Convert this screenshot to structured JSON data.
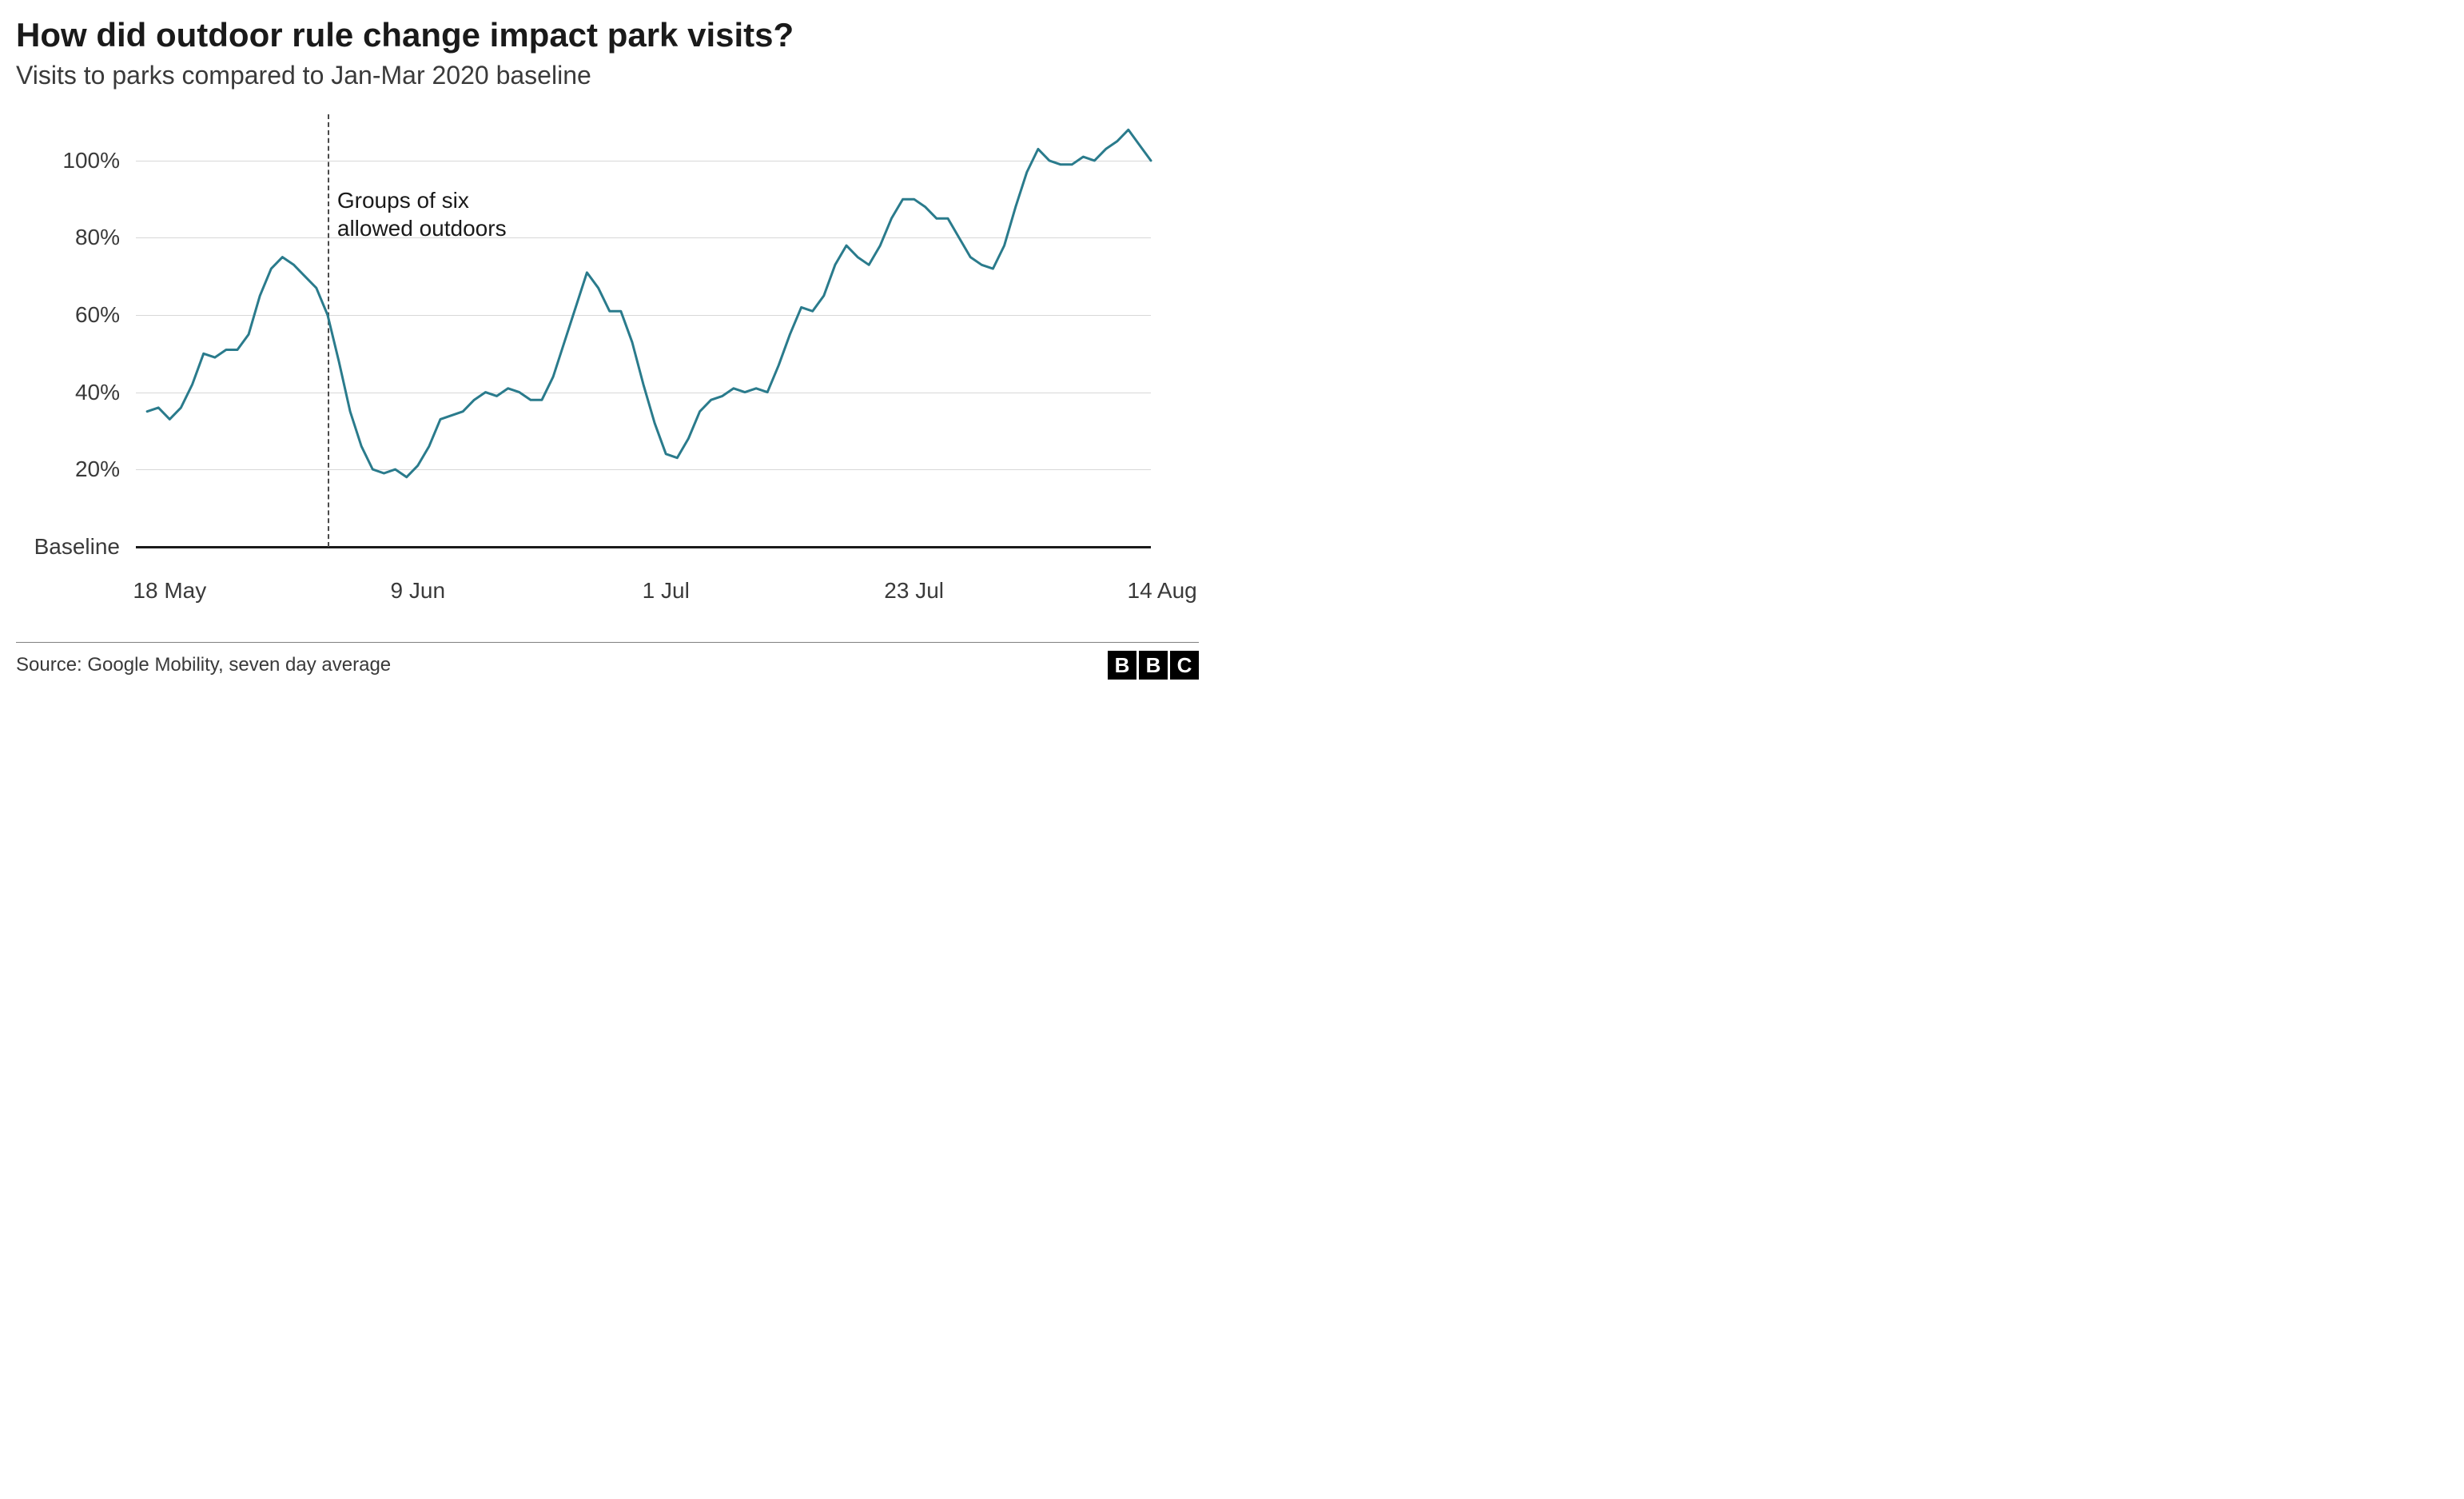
{
  "title": "How did outdoor rule change impact park visits?",
  "subtitle": "Visits to parks compared to Jan-Mar 2020 baseline",
  "source": "Source: Google Mobility, seven day average",
  "logo_letters": [
    "B",
    "B",
    "C"
  ],
  "chart": {
    "type": "line",
    "background_color": "#ffffff",
    "grid_color": "#d8d8d8",
    "baseline_color": "#1a1a1a",
    "line_color": "#2a7b8c",
    "line_width": 3,
    "vline_color": "#4a4a4a",
    "text_color": "#3a3a3a",
    "x_domain": [
      0,
      90
    ],
    "y_domain": [
      -4,
      112
    ],
    "y_ticks": [
      {
        "value": 0,
        "label": "Baseline"
      },
      {
        "value": 20,
        "label": "20%"
      },
      {
        "value": 40,
        "label": "40%"
      },
      {
        "value": 60,
        "label": "60%"
      },
      {
        "value": 80,
        "label": "80%"
      },
      {
        "value": 100,
        "label": "100%"
      }
    ],
    "x_ticks": [
      {
        "value": 3,
        "label": "18 May"
      },
      {
        "value": 25,
        "label": "9 Jun"
      },
      {
        "value": 47,
        "label": "1 Jul"
      },
      {
        "value": 69,
        "label": "23 Jul"
      },
      {
        "value": 91,
        "label": "14 Aug"
      }
    ],
    "annotation": {
      "x": 17,
      "line1": "Groups of six",
      "line2": "allowed outdoors",
      "label_y_top_pct": 16
    },
    "series": [
      {
        "x": 1,
        "y": 35
      },
      {
        "x": 2,
        "y": 36
      },
      {
        "x": 3,
        "y": 33
      },
      {
        "x": 4,
        "y": 36
      },
      {
        "x": 5,
        "y": 42
      },
      {
        "x": 6,
        "y": 50
      },
      {
        "x": 7,
        "y": 49
      },
      {
        "x": 8,
        "y": 51
      },
      {
        "x": 9,
        "y": 51
      },
      {
        "x": 10,
        "y": 55
      },
      {
        "x": 11,
        "y": 65
      },
      {
        "x": 12,
        "y": 72
      },
      {
        "x": 13,
        "y": 75
      },
      {
        "x": 14,
        "y": 73
      },
      {
        "x": 15,
        "y": 70
      },
      {
        "x": 16,
        "y": 67
      },
      {
        "x": 17,
        "y": 60
      },
      {
        "x": 18,
        "y": 48
      },
      {
        "x": 19,
        "y": 35
      },
      {
        "x": 20,
        "y": 26
      },
      {
        "x": 21,
        "y": 20
      },
      {
        "x": 22,
        "y": 19
      },
      {
        "x": 23,
        "y": 20
      },
      {
        "x": 24,
        "y": 18
      },
      {
        "x": 25,
        "y": 21
      },
      {
        "x": 26,
        "y": 26
      },
      {
        "x": 27,
        "y": 33
      },
      {
        "x": 28,
        "y": 34
      },
      {
        "x": 29,
        "y": 35
      },
      {
        "x": 30,
        "y": 38
      },
      {
        "x": 31,
        "y": 40
      },
      {
        "x": 32,
        "y": 39
      },
      {
        "x": 33,
        "y": 41
      },
      {
        "x": 34,
        "y": 40
      },
      {
        "x": 35,
        "y": 38
      },
      {
        "x": 36,
        "y": 38
      },
      {
        "x": 37,
        "y": 44
      },
      {
        "x": 38,
        "y": 53
      },
      {
        "x": 39,
        "y": 62
      },
      {
        "x": 40,
        "y": 71
      },
      {
        "x": 41,
        "y": 67
      },
      {
        "x": 42,
        "y": 61
      },
      {
        "x": 43,
        "y": 61
      },
      {
        "x": 44,
        "y": 53
      },
      {
        "x": 45,
        "y": 42
      },
      {
        "x": 46,
        "y": 32
      },
      {
        "x": 47,
        "y": 24
      },
      {
        "x": 48,
        "y": 23
      },
      {
        "x": 49,
        "y": 28
      },
      {
        "x": 50,
        "y": 35
      },
      {
        "x": 51,
        "y": 38
      },
      {
        "x": 52,
        "y": 39
      },
      {
        "x": 53,
        "y": 41
      },
      {
        "x": 54,
        "y": 40
      },
      {
        "x": 55,
        "y": 41
      },
      {
        "x": 56,
        "y": 40
      },
      {
        "x": 57,
        "y": 47
      },
      {
        "x": 58,
        "y": 55
      },
      {
        "x": 59,
        "y": 62
      },
      {
        "x": 60,
        "y": 61
      },
      {
        "x": 61,
        "y": 65
      },
      {
        "x": 62,
        "y": 73
      },
      {
        "x": 63,
        "y": 78
      },
      {
        "x": 64,
        "y": 75
      },
      {
        "x": 65,
        "y": 73
      },
      {
        "x": 66,
        "y": 78
      },
      {
        "x": 67,
        "y": 85
      },
      {
        "x": 68,
        "y": 90
      },
      {
        "x": 69,
        "y": 90
      },
      {
        "x": 70,
        "y": 88
      },
      {
        "x": 71,
        "y": 85
      },
      {
        "x": 72,
        "y": 85
      },
      {
        "x": 73,
        "y": 80
      },
      {
        "x": 74,
        "y": 75
      },
      {
        "x": 75,
        "y": 73
      },
      {
        "x": 76,
        "y": 72
      },
      {
        "x": 77,
        "y": 78
      },
      {
        "x": 78,
        "y": 88
      },
      {
        "x": 79,
        "y": 97
      },
      {
        "x": 80,
        "y": 103
      },
      {
        "x": 81,
        "y": 100
      },
      {
        "x": 82,
        "y": 99
      },
      {
        "x": 83,
        "y": 99
      },
      {
        "x": 84,
        "y": 101
      },
      {
        "x": 85,
        "y": 100
      },
      {
        "x": 86,
        "y": 103
      },
      {
        "x": 87,
        "y": 105
      },
      {
        "x": 88,
        "y": 108
      },
      {
        "x": 89,
        "y": 104
      },
      {
        "x": 90,
        "y": 100
      }
    ]
  }
}
